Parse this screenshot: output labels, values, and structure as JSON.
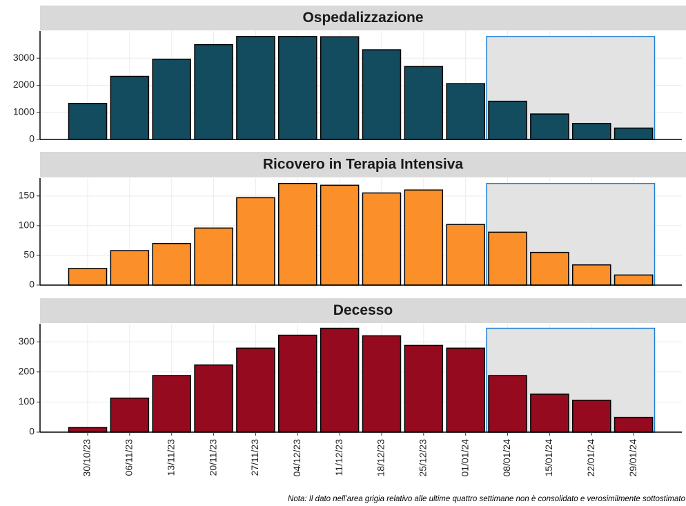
{
  "chart_data": [
    {
      "type": "bar",
      "title": "Ospedalizzazione",
      "color": "#134b5f",
      "values": [
        1330,
        2330,
        2960,
        3500,
        3800,
        3800,
        3790,
        3310,
        2690,
        2060,
        1410,
        940,
        590,
        420
      ],
      "ylim": [
        0,
        4000
      ],
      "yticks": [
        0,
        1000,
        2000,
        3000
      ],
      "grid": true
    },
    {
      "type": "bar",
      "title": "Ricovero in Terapia Intensiva",
      "color": "#fb8f29",
      "values": [
        28,
        58,
        70,
        96,
        147,
        171,
        168,
        155,
        160,
        102,
        89,
        55,
        34,
        17
      ],
      "ylim": [
        0,
        180
      ],
      "yticks": [
        0,
        50,
        100,
        150
      ],
      "grid": true
    },
    {
      "type": "bar",
      "title": "Decesso",
      "color": "#960a20",
      "categories": [
        "30/10/23",
        "06/11/23",
        "13/11/23",
        "20/11/23",
        "27/11/23",
        "04/12/23",
        "11/12/23",
        "18/12/23",
        "25/12/23",
        "01/01/24",
        "08/01/24",
        "15/01/24",
        "22/01/24",
        "29/01/24"
      ],
      "values": [
        15,
        113,
        188,
        223,
        279,
        322,
        345,
        320,
        288,
        279,
        188,
        126,
        106,
        49
      ],
      "ylim": [
        0,
        360
      ],
      "yticks": [
        0,
        100,
        200,
        300
      ],
      "grid": true
    }
  ],
  "shaded_categories": [
    "08/01/24",
    "15/01/24",
    "22/01/24",
    "29/01/24"
  ],
  "note": "Nota: Il dato nell’area grigia relativo alle ultime quattro settimane non è consolidato e verosimilmente sottostimato"
}
